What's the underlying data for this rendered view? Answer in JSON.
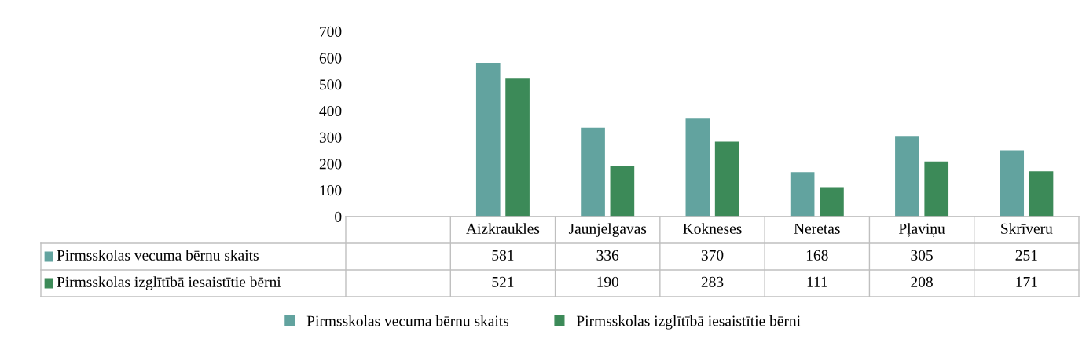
{
  "chart_data": {
    "type": "bar",
    "categories": [
      null,
      "Aizkraukles",
      "Jaunjelgavas",
      "Kokneses",
      "Neretas",
      "Pļaviņu",
      "Skrīveru"
    ],
    "series": [
      {
        "name": "Pirmsskolas vecuma bērnu skaits",
        "color": "#62a39f",
        "values": [
          null,
          581,
          336,
          370,
          168,
          305,
          251
        ]
      },
      {
        "name": "Pirmsskolas izglītībā iesaistītie bērni",
        "color": "#3c8a58",
        "values": [
          null,
          521,
          190,
          283,
          111,
          208,
          171
        ]
      }
    ],
    "ylim": [
      0,
      700
    ],
    "yticks": [
      0,
      100,
      200,
      300,
      400,
      500,
      600,
      700
    ],
    "data_labels": true,
    "grid": false,
    "legend": "bottom"
  }
}
